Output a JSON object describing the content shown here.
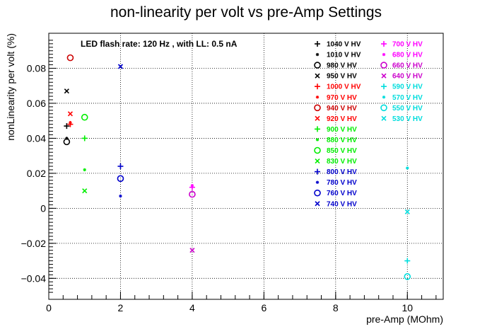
{
  "chart_data": {
    "type": "scatter",
    "title": "non-linearity per volt vs pre-Amp Settings",
    "xlabel": "pre-Amp (MOhm)",
    "ylabel": "nonLinearity per volt (%)",
    "annotation": "LED flash rate: 120 Hz , with LL: 0.5 nA",
    "xlim": [
      0,
      11
    ],
    "ylim": [
      -0.052,
      0.1
    ],
    "x_ticks": [
      0,
      2,
      4,
      6,
      8,
      10
    ],
    "x_tick_labels": [
      "0",
      "2",
      "4",
      "6",
      "8",
      "10"
    ],
    "y_ticks": [
      -0.04,
      -0.02,
      0,
      0.02,
      0.04,
      0.06,
      0.08
    ],
    "y_tick_labels": [
      "−0.04",
      "−0.02",
      "0",
      "0.02",
      "0.04",
      "0.06",
      "0.08"
    ],
    "grid": true,
    "legend_placement": "top-right, two columns",
    "series": [
      {
        "name": "1040 V HV",
        "color": "#000000",
        "marker": "plus",
        "points": [
          [
            0.5,
            0.047
          ]
        ]
      },
      {
        "name": "1010 V HV",
        "color": "#000000",
        "marker": "star",
        "points": [
          [
            0.5,
            0.04
          ]
        ]
      },
      {
        "name": "980 V HV",
        "color": "#000000",
        "marker": "circle",
        "points": [
          [
            0.5,
            0.038
          ]
        ]
      },
      {
        "name": "950 V HV",
        "color": "#000000",
        "marker": "cross",
        "points": [
          [
            0.5,
            0.067
          ]
        ]
      },
      {
        "name": "1000 V HV",
        "color": "#ff0000",
        "marker": "plus",
        "points": [
          [
            0.6,
            0.048
          ]
        ]
      },
      {
        "name": "970 V HV",
        "color": "#ff0000",
        "marker": "star",
        "points": [
          [
            0.6,
            0.049
          ]
        ]
      },
      {
        "name": "940 V HV",
        "color": "#cc0000",
        "marker": "circle",
        "points": [
          [
            0.6,
            0.086
          ]
        ]
      },
      {
        "name": "920 V HV",
        "color": "#ff0000",
        "marker": "cross",
        "points": [
          [
            0.6,
            0.054
          ]
        ]
      },
      {
        "name": "900 V HV",
        "color": "#00ee00",
        "marker": "plus",
        "points": [
          [
            1.0,
            0.04
          ]
        ]
      },
      {
        "name": "880 V HV",
        "color": "#00ee00",
        "marker": "star",
        "points": [
          [
            1.0,
            0.022
          ]
        ]
      },
      {
        "name": "850 V HV",
        "color": "#00ee00",
        "marker": "circle",
        "points": [
          [
            1.0,
            0.052
          ]
        ]
      },
      {
        "name": "830 V HV",
        "color": "#00ee00",
        "marker": "cross",
        "points": [
          [
            1.0,
            0.01
          ]
        ]
      },
      {
        "name": "800 V HV",
        "color": "#0000cc",
        "marker": "plus",
        "points": [
          [
            2.0,
            0.024
          ]
        ]
      },
      {
        "name": "780 V HV",
        "color": "#0000cc",
        "marker": "star",
        "points": [
          [
            2.0,
            0.007
          ]
        ]
      },
      {
        "name": "760 V HV",
        "color": "#0000cc",
        "marker": "circle",
        "points": [
          [
            2.0,
            0.017
          ]
        ]
      },
      {
        "name": "740 V HV",
        "color": "#0000cc",
        "marker": "cross",
        "points": [
          [
            2.0,
            0.081
          ]
        ]
      },
      {
        "name": "700 V HV",
        "color": "#ff00ff",
        "marker": "plus",
        "points": [
          [
            4.0,
            0.012
          ]
        ]
      },
      {
        "name": "680 V HV",
        "color": "#ff00ff",
        "marker": "star",
        "points": [
          [
            4.0,
            0.013
          ]
        ]
      },
      {
        "name": "660 V HV",
        "color": "#cc00cc",
        "marker": "circle",
        "points": [
          [
            4.0,
            0.008
          ]
        ]
      },
      {
        "name": "640 V HV",
        "color": "#cc00cc",
        "marker": "cross",
        "points": [
          [
            4.0,
            -0.024
          ]
        ]
      },
      {
        "name": "590 V HV",
        "color": "#00dddd",
        "marker": "plus",
        "points": [
          [
            10.0,
            -0.03
          ]
        ]
      },
      {
        "name": "570 V HV",
        "color": "#00dddd",
        "marker": "star",
        "points": [
          [
            10.0,
            0.023
          ]
        ]
      },
      {
        "name": "550 V HV",
        "color": "#00dddd",
        "marker": "circle",
        "points": [
          [
            10.0,
            -0.039
          ]
        ]
      },
      {
        "name": "530 V HV",
        "color": "#00dddd",
        "marker": "cross",
        "points": [
          [
            10.0,
            -0.002
          ]
        ]
      }
    ]
  }
}
